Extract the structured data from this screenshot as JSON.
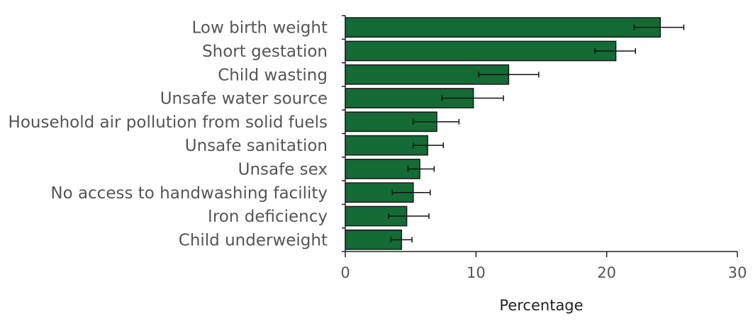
{
  "chart_data": {
    "type": "bar",
    "orientation": "horizontal",
    "categories": [
      "Low birth weight",
      "Short gestation",
      "Child wasting",
      "Unsafe water source",
      "Household air pollution from solid fuels",
      "Unsafe sanitation",
      "Unsafe sex",
      "No access to handwashing facility",
      "Iron deficiency",
      "Child underweight"
    ],
    "values": [
      24.1,
      20.7,
      12.5,
      9.8,
      7.0,
      6.3,
      5.7,
      5.2,
      4.7,
      4.3
    ],
    "error_low": [
      22.1,
      19.1,
      10.2,
      7.4,
      5.2,
      5.2,
      4.8,
      3.6,
      3.3,
      3.5
    ],
    "error_high": [
      25.9,
      22.2,
      14.8,
      12.1,
      8.7,
      7.5,
      6.8,
      6.5,
      6.4,
      5.1
    ],
    "xlabel": "Percentage",
    "ylabel": "",
    "xlim": [
      0,
      30
    ],
    "xticks": [
      0,
      10,
      20,
      30
    ],
    "tick_labels": [
      "0",
      "10",
      "20",
      "30"
    ],
    "grid": false,
    "colors": {
      "bar": "#146b35",
      "error_bar": "#111111",
      "axis": "#222222",
      "label": "#555555"
    }
  }
}
